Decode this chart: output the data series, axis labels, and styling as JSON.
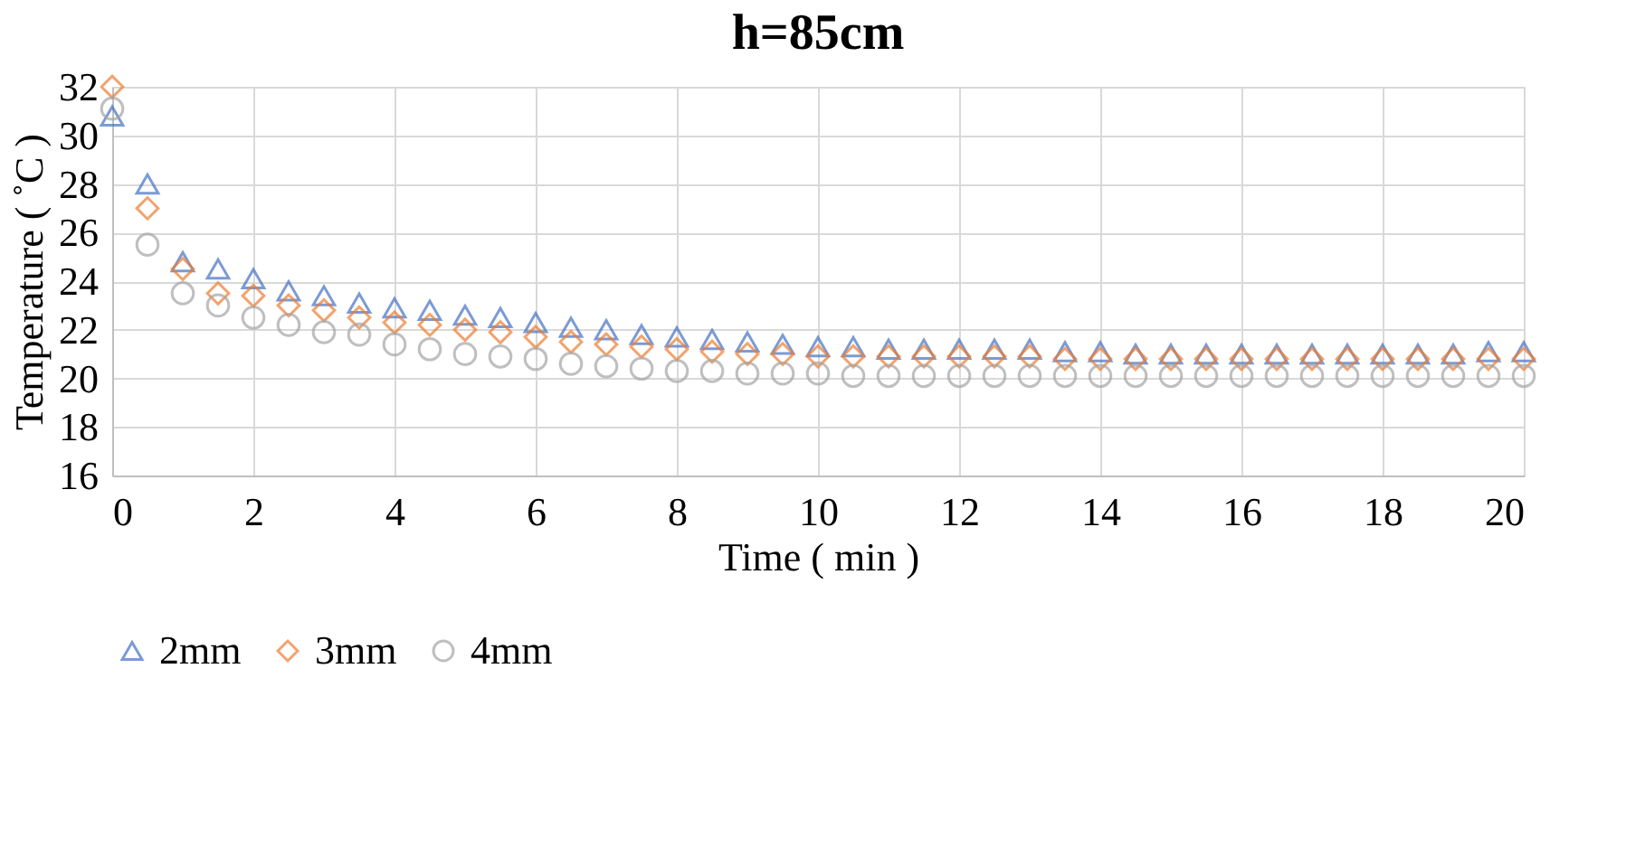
{
  "chart_data": {
    "type": "scatter",
    "title": "h=85cm",
    "xlabel": "Time ( min )",
    "ylabel": "Temperature ( ˚C )",
    "x": [
      0,
      0.5,
      1,
      1.5,
      2,
      2.5,
      3,
      3.5,
      4,
      4.5,
      5,
      5.5,
      6,
      6.5,
      7,
      7.5,
      8,
      8.5,
      9,
      9.5,
      10,
      10.5,
      11,
      11.5,
      12,
      12.5,
      13,
      13.5,
      14,
      14.5,
      15,
      15.5,
      16,
      16.5,
      17,
      17.5,
      18,
      18.5,
      19,
      19.5,
      20
    ],
    "series": [
      {
        "name": "2mm",
        "color": "#4472c4",
        "marker": "triangle",
        "values": [
          30.8,
          28.0,
          24.8,
          24.5,
          24.1,
          23.6,
          23.4,
          23.1,
          22.9,
          22.8,
          22.6,
          22.5,
          22.3,
          22.1,
          22.0,
          21.8,
          21.7,
          21.6,
          21.5,
          21.4,
          21.3,
          21.3,
          21.2,
          21.2,
          21.2,
          21.2,
          21.2,
          21.1,
          21.1,
          21.0,
          21.0,
          21.0,
          21.0,
          21.0,
          21.0,
          21.0,
          21.0,
          21.0,
          21.0,
          21.1,
          21.1
        ]
      },
      {
        "name": "3mm",
        "color": "#ed7d31",
        "marker": "diamond",
        "values": [
          32.0,
          27.0,
          24.5,
          23.5,
          23.4,
          23.0,
          22.8,
          22.5,
          22.3,
          22.2,
          22.0,
          21.9,
          21.7,
          21.5,
          21.4,
          21.3,
          21.2,
          21.1,
          21.0,
          21.0,
          20.9,
          20.9,
          20.9,
          20.9,
          20.9,
          20.9,
          20.9,
          20.8,
          20.8,
          20.8,
          20.8,
          20.8,
          20.8,
          20.8,
          20.8,
          20.8,
          20.8,
          20.8,
          20.8,
          20.8,
          20.8
        ]
      },
      {
        "name": "4mm",
        "color": "#a5a5a5",
        "marker": "circle",
        "values": [
          31.1,
          25.5,
          23.5,
          23.0,
          22.5,
          22.2,
          21.9,
          21.8,
          21.4,
          21.2,
          21.0,
          20.9,
          20.8,
          20.6,
          20.5,
          20.4,
          20.3,
          20.3,
          20.2,
          20.2,
          20.2,
          20.1,
          20.1,
          20.1,
          20.1,
          20.1,
          20.1,
          20.1,
          20.1,
          20.1,
          20.1,
          20.1,
          20.1,
          20.1,
          20.1,
          20.1,
          20.1,
          20.1,
          20.1,
          20.1,
          20.1
        ]
      }
    ],
    "xlim": [
      0,
      20
    ],
    "xticks": [
      0,
      2,
      4,
      6,
      8,
      10,
      12,
      14,
      16,
      18,
      20
    ],
    "ylim": [
      16,
      32
    ],
    "yticks": [
      16,
      18,
      20,
      22,
      24,
      26,
      28,
      30,
      32
    ],
    "grid": true,
    "legend": "bottom"
  }
}
